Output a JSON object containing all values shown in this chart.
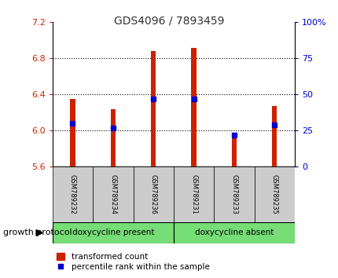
{
  "title": "GDS4096 / 7893459",
  "samples": [
    "GSM789232",
    "GSM789234",
    "GSM789236",
    "GSM789231",
    "GSM789233",
    "GSM789235"
  ],
  "transformed_counts": [
    6.35,
    6.24,
    6.88,
    6.92,
    5.92,
    6.27
  ],
  "percentile_ranks": [
    30,
    27,
    47,
    47,
    22,
    29
  ],
  "bar_bottom": 5.6,
  "ylim_left": [
    5.6,
    7.2
  ],
  "ylim_right": [
    0,
    100
  ],
  "yticks_left": [
    5.6,
    6.0,
    6.4,
    6.8,
    7.2
  ],
  "yticks_right": [
    0,
    25,
    50,
    75,
    100
  ],
  "ytick_labels_right": [
    "0",
    "25",
    "50",
    "75",
    "100%"
  ],
  "bar_color": "#cc2200",
  "marker_color": "#0000cc",
  "title_color": "#333333",
  "left_tick_color": "#cc2200",
  "right_tick_color": "#0000cc",
  "group1_label": "doxycycline present",
  "group2_label": "doxycycline absent",
  "group1_indices": [
    0,
    1,
    2
  ],
  "group2_indices": [
    3,
    4,
    5
  ],
  "group_color": "#77dd77",
  "protocol_label": "growth protocol",
  "legend_bar_label": "transformed count",
  "legend_marker_label": "percentile rank within the sample",
  "bg_color": "#ffffff",
  "grid_color": "#000000",
  "sample_bg_color": "#cccccc",
  "bar_width": 0.12
}
